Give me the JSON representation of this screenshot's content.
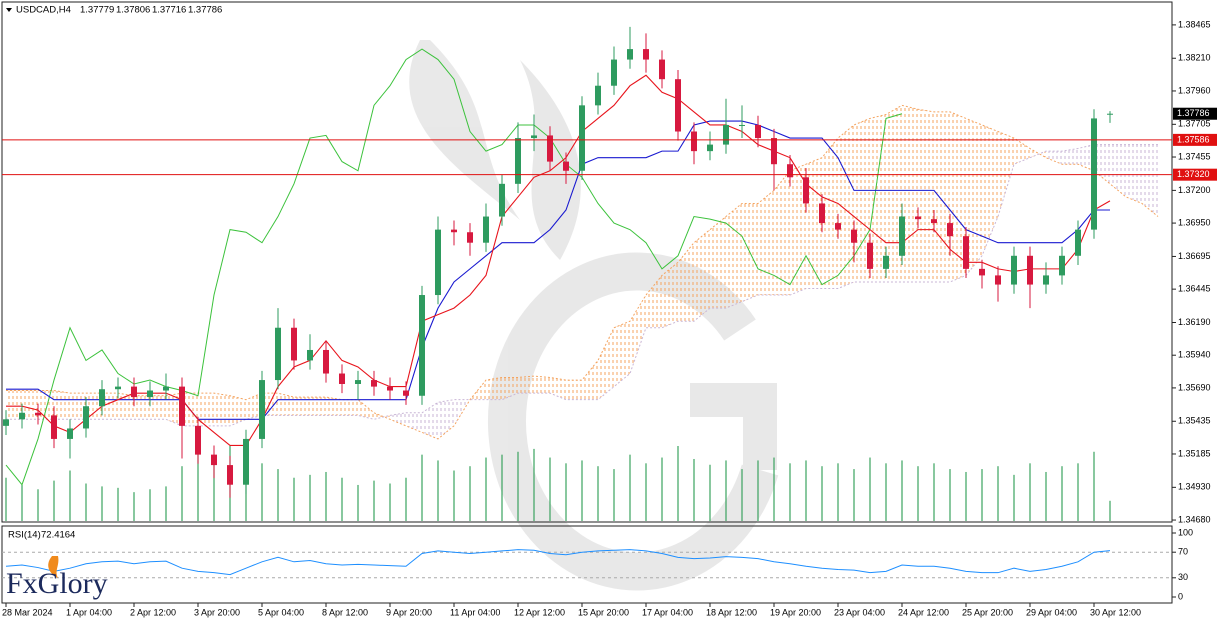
{
  "chart_data": {
    "type": "candlestick",
    "title": "USDCAD,H4",
    "open": [
      1.354,
      1.3545,
      1.355,
      1.3548,
      1.353,
      1.3538,
      1.3555,
      1.3568,
      1.357,
      1.3562,
      1.3567,
      1.357,
      1.354,
      1.3518,
      1.351,
      1.3495,
      1.353,
      1.3575,
      1.3615,
      1.359,
      1.3598,
      1.358,
      1.3572,
      1.3575,
      1.357,
      1.3567,
      1.3563,
      1.364,
      1.369,
      1.3688,
      1.368,
      1.37,
      1.3725,
      1.376,
      1.3762,
      1.3742,
      1.3735,
      1.3785,
      1.38,
      1.382,
      1.3828,
      1.382,
      1.3805,
      1.3765,
      1.375,
      1.3755,
      1.377,
      1.377,
      1.376,
      1.374,
      1.373,
      1.371,
      1.3695,
      1.369,
      1.368,
      1.366,
      1.367,
      1.37,
      1.3698,
      1.3695,
      1.3685,
      1.366,
      1.3655,
      1.3648,
      1.367,
      1.3648,
      1.3655,
      1.367,
      1.369,
      1.37779
    ],
    "high": [
      1.3552,
      1.3557,
      1.3557,
      1.3555,
      1.3545,
      1.3562,
      1.3575,
      1.3577,
      1.3577,
      1.3574,
      1.358,
      1.3577,
      1.3547,
      1.3525,
      1.3517,
      1.3537,
      1.3582,
      1.363,
      1.3622,
      1.361,
      1.3605,
      1.3587,
      1.3582,
      1.3582,
      1.3577,
      1.3574,
      1.3647,
      1.37,
      1.3697,
      1.3695,
      1.371,
      1.3732,
      1.3772,
      1.3778,
      1.3769,
      1.3749,
      1.3792,
      1.381,
      1.383,
      1.3845,
      1.384,
      1.3827,
      1.3812,
      1.3772,
      1.3765,
      1.379,
      1.3785,
      1.3777,
      1.3767,
      1.3747,
      1.3737,
      1.3717,
      1.3702,
      1.3697,
      1.3687,
      1.3677,
      1.371,
      1.3707,
      1.3705,
      1.3702,
      1.3692,
      1.3667,
      1.3662,
      1.3677,
      1.3677,
      1.3665,
      1.3677,
      1.3697,
      1.3782,
      1.37806
    ],
    "low": [
      1.3533,
      1.3538,
      1.3541,
      1.3523,
      1.3515,
      1.3531,
      1.3548,
      1.3561,
      1.3555,
      1.3555,
      1.356,
      1.3515,
      1.3511,
      1.35,
      1.3485,
      1.3488,
      1.3523,
      1.3568,
      1.3583,
      1.3583,
      1.3573,
      1.3565,
      1.356,
      1.3563,
      1.356,
      1.3556,
      1.3556,
      1.3633,
      1.3678,
      1.367,
      1.3673,
      1.3693,
      1.3718,
      1.375,
      1.3735,
      1.3725,
      1.3728,
      1.3778,
      1.3793,
      1.3813,
      1.381,
      1.3798,
      1.3758,
      1.374,
      1.3743,
      1.3748,
      1.376,
      1.3753,
      1.372,
      1.3723,
      1.3703,
      1.3688,
      1.3683,
      1.3665,
      1.3653,
      1.3653,
      1.3663,
      1.3691,
      1.3688,
      1.367,
      1.3653,
      1.3645,
      1.3635,
      1.3641,
      1.363,
      1.3641,
      1.3648,
      1.3663,
      1.3683,
      1.37716
    ],
    "close": [
      1.3545,
      1.355,
      1.3548,
      1.353,
      1.3538,
      1.3555,
      1.3568,
      1.357,
      1.3562,
      1.3567,
      1.357,
      1.354,
      1.3518,
      1.351,
      1.3495,
      1.353,
      1.3575,
      1.3615,
      1.359,
      1.3598,
      1.358,
      1.3572,
      1.3575,
      1.357,
      1.3567,
      1.3563,
      1.364,
      1.369,
      1.3688,
      1.368,
      1.37,
      1.3725,
      1.376,
      1.3762,
      1.3742,
      1.3735,
      1.3785,
      1.38,
      1.382,
      1.3828,
      1.382,
      1.3805,
      1.3765,
      1.375,
      1.3755,
      1.377,
      1.377,
      1.376,
      1.374,
      1.373,
      1.371,
      1.3695,
      1.369,
      1.368,
      1.366,
      1.367,
      1.37,
      1.3698,
      1.3695,
      1.3685,
      1.366,
      1.3655,
      1.3648,
      1.367,
      1.3648,
      1.3655,
      1.367,
      1.369,
      1.3775,
      1.37786
    ],
    "up_color": "#2e9b5f",
    "down_color": "#d7193f",
    "volume": [
      3000,
      2500,
      2200,
      2800,
      3500,
      2600,
      2400,
      2300,
      2000,
      2200,
      2400,
      3800,
      5000,
      4500,
      5200,
      4800,
      4000,
      3600,
      3000,
      3200,
      3400,
      3000,
      2500,
      2800,
      2600,
      3000,
      4600,
      4200,
      3500,
      3800,
      4400,
      4600,
      4800,
      5000,
      4400,
      4000,
      4200,
      3800,
      3600,
      4600,
      4000,
      4400,
      5200,
      4300,
      3900,
      4200,
      3600,
      4200,
      4400,
      4000,
      4200,
      3800,
      4000,
      3600,
      4400,
      4000,
      4200,
      3800,
      4000,
      3600,
      3400,
      3600,
      3800,
      3200,
      4000,
      3400,
      3800,
      4000,
      4800,
      1400
    ],
    "volume_color": "#3aa35f",
    "tenkan": [
      1.3555,
      1.3555,
      1.3552,
      1.354,
      1.3535,
      1.3545,
      1.3555,
      1.356,
      1.3565,
      1.3565,
      1.3565,
      1.356,
      1.3545,
      1.3535,
      1.3525,
      1.3525,
      1.3545,
      1.357,
      1.3585,
      1.359,
      1.3605,
      1.359,
      1.3585,
      1.3575,
      1.357,
      1.357,
      1.362,
      1.3625,
      1.363,
      1.364,
      1.3655,
      1.37,
      1.3715,
      1.373,
      1.3735,
      1.3745,
      1.3765,
      1.3775,
      1.3785,
      1.38,
      1.3808,
      1.3795,
      1.379,
      1.378,
      1.377,
      1.377,
      1.3765,
      1.3755,
      1.375,
      1.3745,
      1.3725,
      1.3715,
      1.371,
      1.37,
      1.369,
      1.368,
      1.368,
      1.369,
      1.369,
      1.3675,
      1.3665,
      1.3665,
      1.366,
      1.3658,
      1.366,
      1.366,
      1.366,
      1.3675,
      1.3705,
      1.3712
    ],
    "tenkan_color": "#e8141c",
    "kijun": [
      1.3568,
      1.3568,
      1.3568,
      1.356,
      1.356,
      1.356,
      1.356,
      1.356,
      1.356,
      1.356,
      1.356,
      1.356,
      1.3545,
      1.3545,
      1.3545,
      1.3545,
      1.3545,
      1.356,
      1.356,
      1.356,
      1.356,
      1.356,
      1.356,
      1.356,
      1.356,
      1.356,
      1.36,
      1.363,
      1.365,
      1.366,
      1.367,
      1.368,
      1.368,
      1.368,
      1.369,
      1.3705,
      1.374,
      1.3745,
      1.3745,
      1.3745,
      1.3745,
      1.375,
      1.375,
      1.377,
      1.3773,
      1.3773,
      1.3773,
      1.377,
      1.3765,
      1.376,
      1.376,
      1.376,
      1.3745,
      1.372,
      1.372,
      1.372,
      1.372,
      1.372,
      1.372,
      1.3705,
      1.369,
      1.3685,
      1.368,
      1.368,
      1.368,
      1.368,
      1.368,
      1.369,
      1.3705,
      1.3705
    ],
    "kijun_color": "#1a1ad0",
    "chikou_color": "#3cc23c",
    "span_a": [
      1.3567,
      1.3567,
      1.3567,
      1.3567,
      1.3565,
      1.3565,
      1.3565,
      1.3565,
      1.3563,
      1.3563,
      1.3563,
      1.3565,
      1.3565,
      1.3565,
      1.3563,
      1.356,
      1.3565,
      1.3565,
      1.3562,
      1.3562,
      1.3562,
      1.356,
      1.356,
      1.355,
      1.3545,
      1.354,
      1.3535,
      1.353,
      1.354,
      1.356,
      1.3575,
      1.3577,
      1.3577,
      1.3578,
      1.3577,
      1.3575,
      1.3575,
      1.359,
      1.3615,
      1.362,
      1.364,
      1.3655,
      1.3665,
      1.368,
      1.369,
      1.37,
      1.371,
      1.371,
      1.372,
      1.3735,
      1.374,
      1.3745,
      1.376,
      1.377,
      1.3775,
      1.3778,
      1.3785,
      1.3782,
      1.378,
      1.378,
      1.3775,
      1.377,
      1.3765,
      1.376,
      1.3752,
      1.3745,
      1.374,
      1.374,
      1.3735,
      1.3725,
      1.3715,
      1.371,
      1.37
    ],
    "span_b": [
      1.3545,
      1.3545,
      1.3545,
      1.3545,
      1.3545,
      1.3545,
      1.3545,
      1.3545,
      1.3545,
      1.3545,
      1.3545,
      1.354,
      1.354,
      1.354,
      1.354,
      1.3545,
      1.3548,
      1.3548,
      1.3548,
      1.3548,
      1.3548,
      1.3548,
      1.3548,
      1.3545,
      1.3548,
      1.355,
      1.355,
      1.3558,
      1.356,
      1.356,
      1.356,
      1.356,
      1.3565,
      1.3565,
      1.3565,
      1.356,
      1.356,
      1.356,
      1.357,
      1.358,
      1.3615,
      1.3615,
      1.362,
      1.362,
      1.363,
      1.363,
      1.3635,
      1.364,
      1.364,
      1.364,
      1.3645,
      1.3645,
      1.3645,
      1.365,
      1.365,
      1.365,
      1.365,
      1.365,
      1.365,
      1.365,
      1.3655,
      1.367,
      1.37,
      1.374,
      1.3745,
      1.375,
      1.375,
      1.3752,
      1.3755,
      1.3755,
      1.3755,
      1.3755,
      1.3755
    ],
    "span_a_color": "#f4a460",
    "span_b_color": "#c9b6d6",
    "levels": [
      1.37586,
      {
        "value": 1.3732,
        "label": "1.37320"
      }
    ],
    "level_color": "#e01010",
    "ylim": [
      1.34665,
      1.3864
    ],
    "yticks": [
      1.38465,
      {
        "value": 1.3821,
        "label": "1.38210"
      },
      {
        "value": 1.3796,
        "label": "1.37960"
      },
      1.37705,
      1.37455,
      {
        "value": 1.372,
        "label": "1.37200"
      },
      {
        "value": 1.3695,
        "label": "1.36950"
      },
      1.36695,
      1.36445,
      {
        "value": 1.3619,
        "label": "1.36190"
      },
      {
        "value": 1.3594,
        "label": "1.35940"
      },
      {
        "value": 1.3569,
        "label": "1.35690"
      },
      1.35435,
      1.35185,
      {
        "value": 1.3493,
        "label": "1.34930"
      },
      {
        "value": 1.3468,
        "label": "1.34680"
      }
    ],
    "xticks": [
      {
        "value": 0,
        "label": "28 Mar 2024"
      },
      {
        "value": 4,
        "label": "1 Apr 04:00"
      },
      {
        "value": 8,
        "label": "2 Apr 12:00"
      },
      {
        "value": 12,
        "label": "3 Apr 20:00"
      },
      {
        "value": 16,
        "label": "5 Apr 04:00"
      },
      {
        "value": 20,
        "label": "8 Apr 12:00"
      },
      {
        "value": 24,
        "label": "9 Apr 20:00"
      },
      {
        "value": 28,
        "label": "11 Apr 04:00"
      },
      {
        "value": 32,
        "label": "12 Apr 12:00"
      },
      {
        "value": 36,
        "label": "15 Apr 20:00"
      },
      {
        "value": 40,
        "label": "17 Apr 04:00"
      },
      {
        "value": 44,
        "label": "18 Apr 12:00"
      },
      {
        "value": 48,
        "label": "19 Apr 20:00"
      },
      {
        "value": 52,
        "label": "23 Apr 04:00"
      },
      {
        "value": 56,
        "label": "24 Apr 12:00"
      },
      {
        "value": 60,
        "label": "25 Apr 20:00"
      },
      {
        "value": 64,
        "label": "29 Apr 04:00"
      },
      {
        "value": 68,
        "label": "30 Apr 12:00"
      }
    ],
    "rsi": {
      "title": "RSI(14)",
      "color": "#1e8fff",
      "values": [
        48,
        50,
        46,
        40,
        45,
        52,
        55,
        56,
        52,
        55,
        56,
        45,
        40,
        38,
        35,
        45,
        55,
        62,
        55,
        57,
        52,
        50,
        51,
        50,
        49,
        48,
        68,
        72,
        70,
        68,
        70,
        72,
        74,
        73,
        68,
        66,
        70,
        72,
        73,
        74,
        72,
        68,
        62,
        60,
        61,
        63,
        62,
        60,
        55,
        52,
        48,
        45,
        43,
        42,
        38,
        40,
        50,
        48,
        48,
        45,
        40,
        38,
        38,
        45,
        40,
        43,
        48,
        55,
        70,
        72.4164
      ],
      "ylim": [
        0,
        100
      ],
      "yticks": [
        100,
        70,
        30,
        0
      ],
      "levels": [
        70,
        30
      ]
    },
    "logo": "FxGlory"
  }
}
